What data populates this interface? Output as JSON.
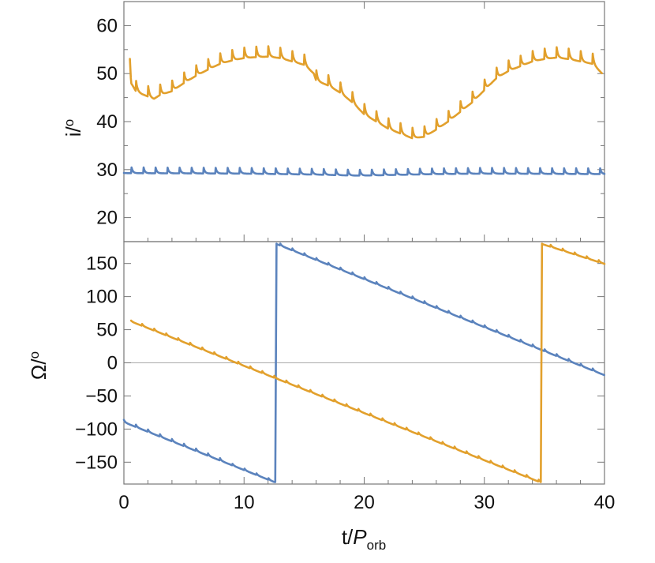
{
  "chart_data": [
    {
      "type": "line",
      "panel": "top",
      "title": "",
      "xlabel": "",
      "ylabel": "i/o",
      "ylabel_main": "i",
      "ylabel_sup": "o",
      "xlim": [
        0,
        40
      ],
      "ylim": [
        15,
        65
      ],
      "yticks": [
        20,
        30,
        40,
        50,
        60
      ],
      "ytick_labels": [
        "20",
        "30",
        "40",
        "50",
        "60"
      ],
      "series": [
        {
          "name": "orange",
          "color": "#e2a02c",
          "x": [
            0.5,
            0.6,
            1.0,
            1.5,
            2.0,
            2.5,
            3.0,
            4.0,
            5.0,
            6.0,
            7.0,
            8.0,
            9.0,
            10.0,
            11.0,
            12.0,
            13.0,
            14.0,
            15.0,
            15.8,
            16.0,
            17.0,
            18.0,
            19.0,
            20.0,
            21.0,
            22.0,
            23.0,
            24.0,
            25.0,
            26.0,
            27.0,
            28.0,
            29.0,
            30.0,
            31.0,
            32.0,
            33.0,
            34.0,
            35.0,
            36.0,
            37.0,
            38.0,
            39.0,
            39.8
          ],
          "values": [
            53.5,
            48.5,
            46.8,
            46.2,
            45.7,
            45.2,
            46.0,
            46.8,
            48.5,
            50.0,
            51.3,
            52.5,
            53.2,
            53.7,
            53.9,
            54.0,
            53.7,
            53.0,
            52.3,
            50.5,
            49.0,
            48.0,
            46.5,
            44.5,
            42.0,
            40.5,
            39.0,
            38.0,
            37.0,
            37.3,
            38.8,
            40.5,
            42.5,
            44.5,
            47.0,
            49.5,
            51.0,
            52.0,
            53.0,
            53.5,
            53.8,
            53.5,
            53.0,
            52.5,
            50.5
          ],
          "spikes": {
            "period": 1.0,
            "amplitude": 2.6
          }
        },
        {
          "name": "blue",
          "color": "#5b83bd",
          "x": [
            0,
            10,
            16,
            19,
            20,
            22,
            24,
            26,
            30,
            40
          ],
          "values": [
            29.5,
            29.4,
            29.2,
            29.0,
            29.0,
            29.1,
            29.2,
            29.3,
            29.4,
            29.3
          ],
          "spikes": {
            "period": 1.0,
            "amplitude": 1.3
          }
        }
      ]
    },
    {
      "type": "line",
      "panel": "bottom",
      "title": "",
      "xlabel": "t/P_orb",
      "xlabel_main": "t/",
      "xlabel_italic": "P",
      "xlabel_sub": "orb",
      "ylabel": "Ω/o",
      "ylabel_main": "Ω",
      "ylabel_sup": "o",
      "xlim": [
        0,
        40
      ],
      "ylim": [
        -183,
        183
      ],
      "xticks": [
        0,
        10,
        20,
        30,
        40
      ],
      "xtick_labels": [
        "0",
        "10",
        "20",
        "30",
        "40"
      ],
      "yticks": [
        -150,
        -100,
        -50,
        0,
        50,
        100,
        150
      ],
      "ytick_labels": [
        "−150",
        "−100",
        "−50",
        "0",
        "50",
        "100",
        "150"
      ],
      "zero_line": true,
      "series": [
        {
          "name": "blue",
          "color": "#5b83bd",
          "segments": [
            {
              "x": [
                0,
                12.6
              ],
              "values": [
                -89,
                -180
              ]
            },
            {
              "x": [
                12.6,
                12.7
              ],
              "values": [
                -180,
                180
              ]
            },
            {
              "x": [
                12.7,
                40
              ],
              "values": [
                180,
                -18
              ]
            }
          ],
          "spikes": {
            "period": 1.0,
            "amplitude": 3.5
          }
        },
        {
          "name": "orange",
          "color": "#e2a02c",
          "segments": [
            {
              "x": [
                0.6,
                34.7
              ],
              "values": [
                63,
                -180
              ]
            },
            {
              "x": [
                34.7,
                34.8
              ],
              "values": [
                -180,
                180
              ]
            },
            {
              "x": [
                34.8,
                40
              ],
              "values": [
                180,
                150
              ]
            }
          ],
          "spikes": {
            "period": 1.0,
            "amplitude": 3.5
          }
        }
      ]
    }
  ]
}
